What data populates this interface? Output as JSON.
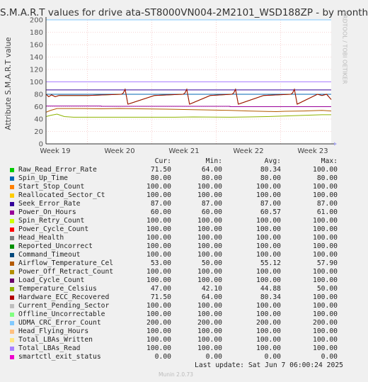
{
  "header": {
    "title": "S.M.A.R.T values for drive ata-ST8000VN004-2M2101_WSD188ZP - by month",
    "side_label": "RRDTOOL / TOBI OETIKER"
  },
  "legend_headers": [
    "Cur:",
    "Min:",
    "Avg:",
    "Max:"
  ],
  "last_update": "Last update: Sat Jun  7 06:00:24 2025",
  "footer": "Munin 2.0.73",
  "chart_data": {
    "type": "line",
    "title": "S.M.A.R.T values for drive ata-ST8000VN004-2M2101_WSD188ZP - by month",
    "xlabel": "",
    "ylabel": "Attribute S.M.A.R.T value",
    "ylim": [
      0,
      200
    ],
    "yticks": [
      0,
      20,
      40,
      60,
      80,
      100,
      120,
      140,
      160,
      180,
      200
    ],
    "xticks": [
      "Week 19",
      "Week 20",
      "Week 21",
      "Week 22",
      "Week 23"
    ],
    "grid": true,
    "legend_position": "bottom",
    "series": [
      {
        "name": "Raw_Read_Error_Rate",
        "color": "#00cc00",
        "cur": "71.50",
        "min": "64.00",
        "avg": "80.34",
        "max": "100.00"
      },
      {
        "name": "Spin_Up_Time",
        "color": "#0066b3",
        "cur": "80.00",
        "min": "80.00",
        "avg": "80.00",
        "max": "80.00"
      },
      {
        "name": "Start_Stop_Count",
        "color": "#ff8000",
        "cur": "100.00",
        "min": "100.00",
        "avg": "100.00",
        "max": "100.00"
      },
      {
        "name": "Reallocated_Sector_Ct",
        "color": "#ffcc00",
        "cur": "100.00",
        "min": "100.00",
        "avg": "100.00",
        "max": "100.00"
      },
      {
        "name": "Seek_Error_Rate",
        "color": "#330099",
        "cur": "87.00",
        "min": "87.00",
        "avg": "87.00",
        "max": "87.00"
      },
      {
        "name": "Power_On_Hours",
        "color": "#990099",
        "cur": "60.00",
        "min": "60.00",
        "avg": "60.57",
        "max": "61.00"
      },
      {
        "name": "Spin_Retry_Count",
        "color": "#ccff00",
        "cur": "100.00",
        "min": "100.00",
        "avg": "100.00",
        "max": "100.00"
      },
      {
        "name": "Power_Cycle_Count",
        "color": "#ff0000",
        "cur": "100.00",
        "min": "100.00",
        "avg": "100.00",
        "max": "100.00"
      },
      {
        "name": "Head_Health",
        "color": "#808080",
        "cur": "100.00",
        "min": "100.00",
        "avg": "100.00",
        "max": "100.00"
      },
      {
        "name": "Reported_Uncorrect",
        "color": "#008f00",
        "cur": "100.00",
        "min": "100.00",
        "avg": "100.00",
        "max": "100.00"
      },
      {
        "name": "Command_Timeout",
        "color": "#00487d",
        "cur": "100.00",
        "min": "100.00",
        "avg": "100.00",
        "max": "100.00"
      },
      {
        "name": "Airflow_Temperature_Cel",
        "color": "#b35a00",
        "cur": "53.00",
        "min": "50.00",
        "avg": "55.12",
        "max": "57.90"
      },
      {
        "name": "Power_Off_Retract_Count",
        "color": "#b38f00",
        "cur": "100.00",
        "min": "100.00",
        "avg": "100.00",
        "max": "100.00"
      },
      {
        "name": "Load_Cycle_Count",
        "color": "#6b006b",
        "cur": "100.00",
        "min": "100.00",
        "avg": "100.00",
        "max": "100.00"
      },
      {
        "name": "Temperature_Celsius",
        "color": "#8fb300",
        "cur": "47.00",
        "min": "42.10",
        "avg": "44.88",
        "max": "50.00"
      },
      {
        "name": "Hardware_ECC_Recovered",
        "color": "#b30000",
        "cur": "71.50",
        "min": "64.00",
        "avg": "80.34",
        "max": "100.00"
      },
      {
        "name": "Current_Pending_Sector",
        "color": "#bebebe",
        "cur": "100.00",
        "min": "100.00",
        "avg": "100.00",
        "max": "100.00"
      },
      {
        "name": "Offline_Uncorrectable",
        "color": "#80ff80",
        "cur": "100.00",
        "min": "100.00",
        "avg": "100.00",
        "max": "100.00"
      },
      {
        "name": "UDMA_CRC_Error_Count",
        "color": "#80c9ff",
        "cur": "200.00",
        "min": "200.00",
        "avg": "200.00",
        "max": "200.00"
      },
      {
        "name": "Head_Flying_Hours",
        "color": "#ffc080",
        "cur": "100.00",
        "min": "100.00",
        "avg": "100.00",
        "max": "100.00"
      },
      {
        "name": "Total_LBAs_Written",
        "color": "#ffe680",
        "cur": "100.00",
        "min": "100.00",
        "avg": "100.00",
        "max": "100.00"
      },
      {
        "name": "Total_LBAs_Read",
        "color": "#aa80ff",
        "cur": "100.00",
        "min": "100.00",
        "avg": "100.00",
        "max": "100.00"
      },
      {
        "name": "smartctl_exit_status",
        "color": "#ee00cc",
        "cur": "0.00",
        "min": "0.00",
        "avg": "0.00",
        "max": "0.00"
      }
    ]
  }
}
